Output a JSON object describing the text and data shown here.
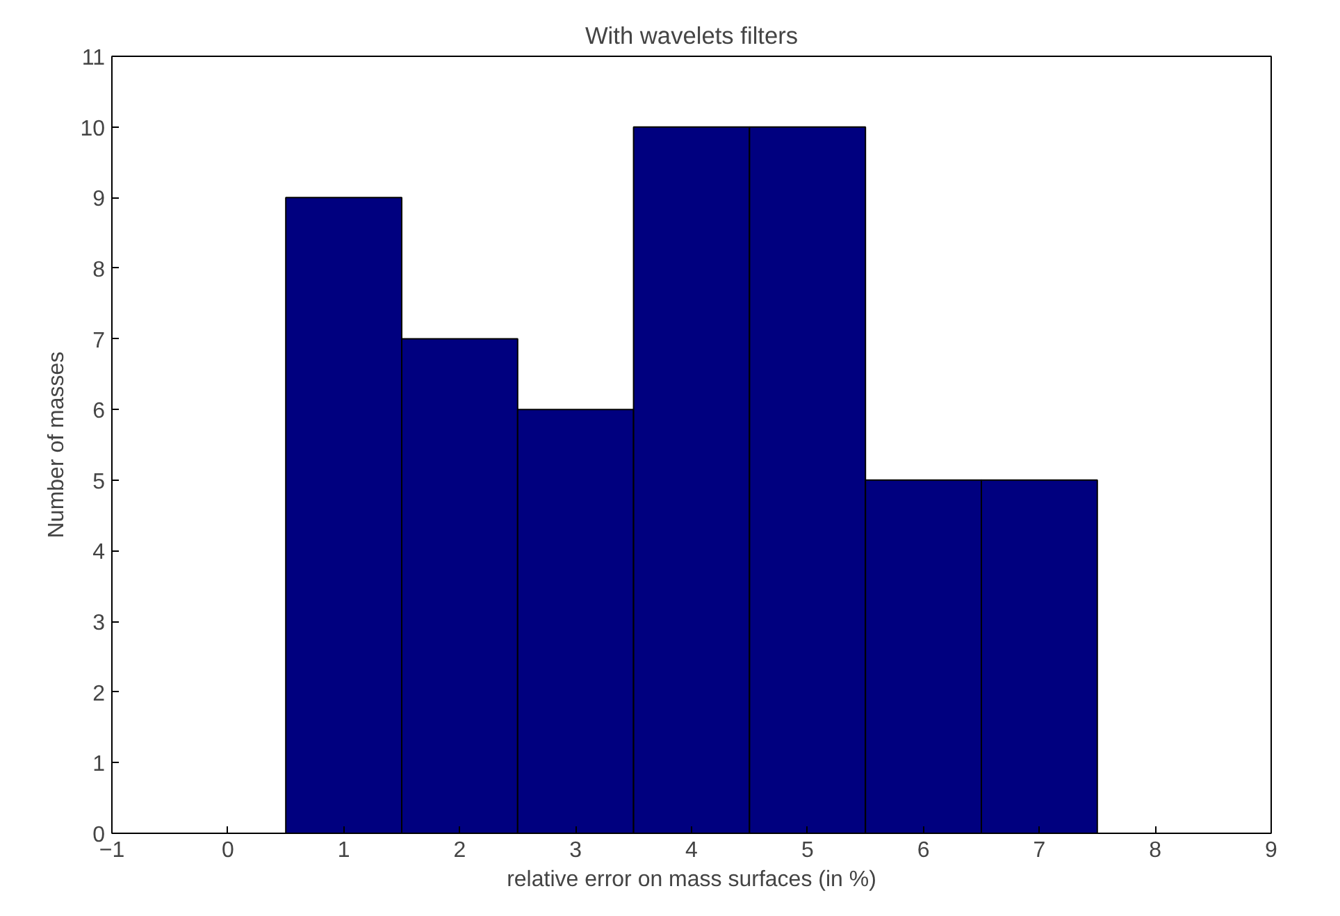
{
  "chart_data": {
    "type": "histogram",
    "title": "With wavelets filters",
    "xlabel": "relative error on mass surfaces (in %)",
    "ylabel": "Number of masses",
    "bins": [
      -0.5,
      0.5,
      1.5,
      2.5,
      3.5,
      4.5,
      5.5,
      6.5,
      7.5,
      8.5
    ],
    "values": [
      0,
      9,
      7,
      6,
      10,
      10,
      5,
      5,
      0
    ],
    "color": "#00007f",
    "xlim": [
      -1,
      9
    ],
    "xticks": [
      -1,
      0,
      1,
      2,
      3,
      4,
      5,
      6,
      7,
      8,
      9
    ],
    "ylim": [
      0,
      11
    ],
    "yticks": [
      0,
      1,
      2,
      3,
      4,
      5,
      6,
      7,
      8,
      9,
      10,
      11
    ],
    "grid": false
  }
}
